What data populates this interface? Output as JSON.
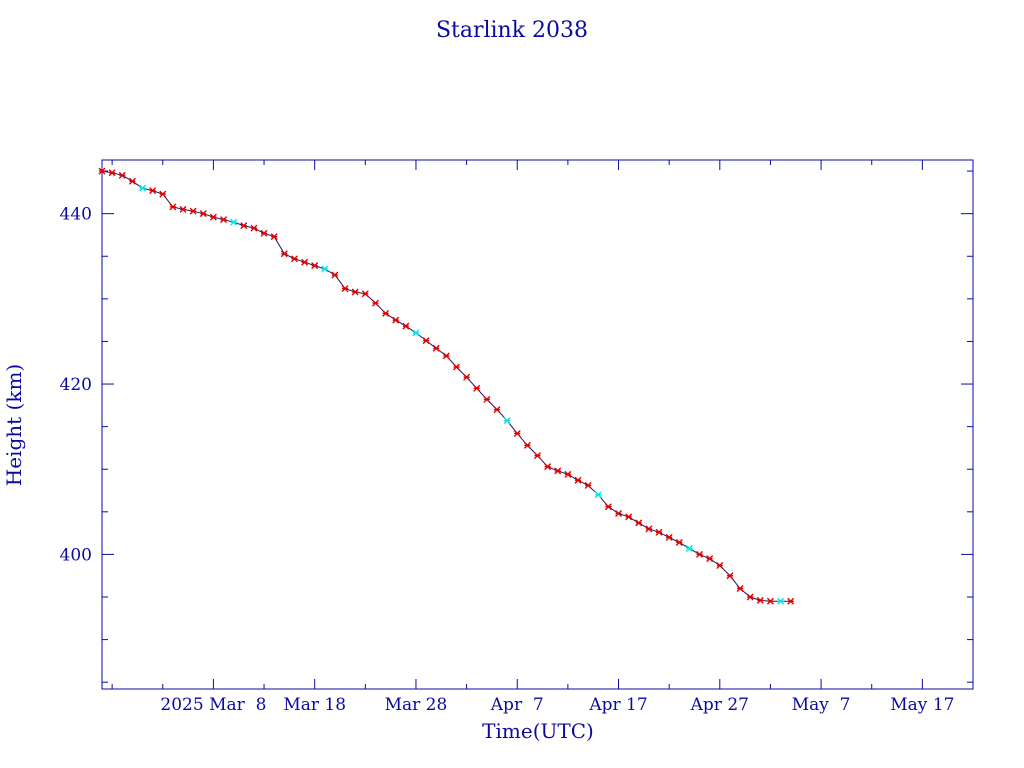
{
  "chart_data": {
    "type": "line",
    "title": "Starlink 2038",
    "xlabel": "Time(UTC)",
    "ylabel": "Height (km)",
    "x_tick_labels": [
      "2025 Mar  8",
      "Mar 18",
      "Mar 28",
      "Apr  7",
      "Apr 17",
      "Apr 27",
      "May  7",
      "May 17"
    ],
    "x_tick_dates": [
      "2025-03-08",
      "2025-03-18",
      "2025-03-28",
      "2025-04-07",
      "2025-04-17",
      "2025-04-27",
      "2025-05-07",
      "2025-05-17"
    ],
    "y_tick_labels": [
      "400",
      "420",
      "440"
    ],
    "y_ticks": [
      400,
      420,
      440
    ],
    "xlim": [
      "2025-02-25",
      "2025-05-22"
    ],
    "ylim": [
      384.2,
      446.3
    ],
    "grid": false,
    "series": [
      {
        "x": [
          "2025-02-25",
          "2025-02-26",
          "2025-02-27",
          "2025-02-28",
          "2025-03-01",
          "2025-03-02",
          "2025-03-03",
          "2025-03-04",
          "2025-03-05",
          "2025-03-06",
          "2025-03-07",
          "2025-03-08",
          "2025-03-09",
          "2025-03-10",
          "2025-03-11",
          "2025-03-12",
          "2025-03-13",
          "2025-03-14",
          "2025-03-15",
          "2025-03-16",
          "2025-03-17",
          "2025-03-18",
          "2025-03-19",
          "2025-03-20",
          "2025-03-21",
          "2025-03-22",
          "2025-03-23",
          "2025-03-24",
          "2025-03-25",
          "2025-03-26",
          "2025-03-27",
          "2025-03-28",
          "2025-03-29",
          "2025-03-30",
          "2025-03-31",
          "2025-04-01",
          "2025-04-02",
          "2025-04-03",
          "2025-04-04",
          "2025-04-05",
          "2025-04-06",
          "2025-04-07",
          "2025-04-08",
          "2025-04-09",
          "2025-04-10",
          "2025-04-11",
          "2025-04-12",
          "2025-04-13",
          "2025-04-14",
          "2025-04-15",
          "2025-04-16",
          "2025-04-17",
          "2025-04-18",
          "2025-04-19",
          "2025-04-20",
          "2025-04-21",
          "2025-04-22",
          "2025-04-23",
          "2025-04-24",
          "2025-04-25",
          "2025-04-26",
          "2025-04-27",
          "2025-04-28",
          "2025-04-29",
          "2025-04-30",
          "2025-05-01",
          "2025-05-02",
          "2025-05-03",
          "2025-05-04"
        ],
        "values": [
          445.0,
          444.8,
          444.5,
          443.8,
          443.0,
          442.7,
          442.3,
          440.8,
          440.5,
          440.3,
          440.0,
          439.6,
          439.3,
          439.0,
          438.6,
          438.3,
          437.7,
          437.3,
          435.3,
          434.7,
          434.3,
          433.9,
          433.5,
          432.8,
          431.2,
          430.8,
          430.6,
          429.5,
          428.3,
          427.5,
          426.8,
          426.0,
          425.1,
          424.2,
          423.3,
          422.0,
          420.8,
          419.5,
          418.2,
          417.0,
          415.7,
          414.2,
          412.8,
          411.6,
          410.3,
          409.8,
          409.4,
          408.7,
          408.1,
          407.0,
          405.6,
          404.8,
          404.4,
          403.7,
          403.0,
          402.6,
          402.0,
          401.4,
          400.7,
          400.0,
          399.5,
          398.7,
          397.5,
          396.0,
          395.0,
          394.6,
          394.5,
          394.5,
          394.5
        ]
      }
    ]
  },
  "colors": {
    "axis": "#0a0aa0",
    "line": "#1a1a6e",
    "marker": "#e00000",
    "marker_alt": "#00e5e5"
  }
}
